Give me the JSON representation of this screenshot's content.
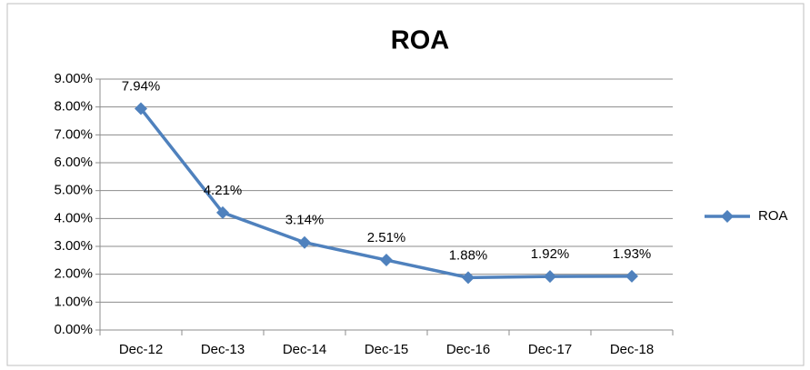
{
  "chart_data": {
    "type": "line",
    "title": "ROA",
    "categories": [
      "Dec-12",
      "Dec-13",
      "Dec-14",
      "Dec-15",
      "Dec-16",
      "Dec-17",
      "Dec-18"
    ],
    "series": [
      {
        "name": "ROA",
        "color": "#4f81bd",
        "values": [
          7.94,
          4.21,
          3.14,
          2.51,
          1.88,
          1.92,
          1.93
        ],
        "value_labels": [
          "7.94%",
          "4.21%",
          "3.14%",
          "2.51%",
          "1.88%",
          "1.92%",
          "1.93%"
        ]
      }
    ],
    "ylim": [
      0,
      9
    ],
    "yticks": [
      {
        "value": 0,
        "label": "0.00%"
      },
      {
        "value": 1,
        "label": "1.00%"
      },
      {
        "value": 2,
        "label": "2.00%"
      },
      {
        "value": 3,
        "label": "3.00%"
      },
      {
        "value": 4,
        "label": "4.00%"
      },
      {
        "value": 5,
        "label": "5.00%"
      },
      {
        "value": 6,
        "label": "6.00%"
      },
      {
        "value": 7,
        "label": "7.00%"
      },
      {
        "value": 8,
        "label": "8.00%"
      },
      {
        "value": 9,
        "label": "9.00%"
      }
    ],
    "grid": true,
    "legend": "right"
  }
}
